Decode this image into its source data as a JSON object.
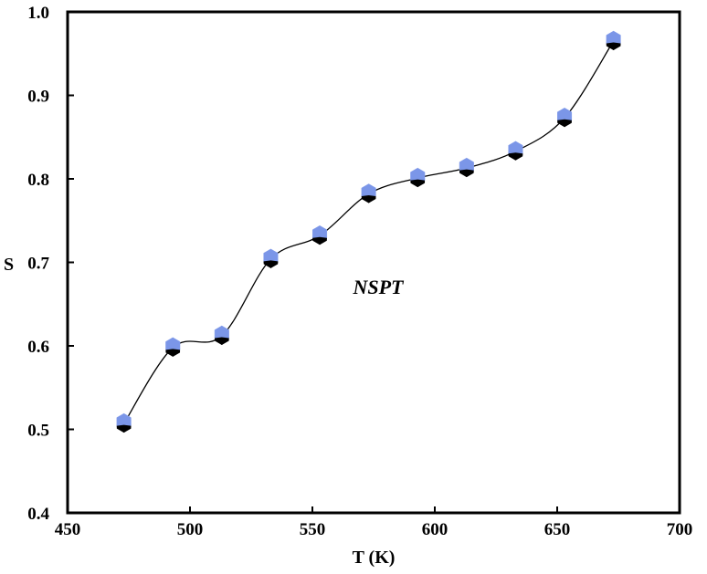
{
  "chart_data": {
    "type": "line",
    "xlabel": "T (K)",
    "ylabel": "S",
    "annotation": "NSPT",
    "xlim": [
      450,
      700
    ],
    "ylim": [
      0.4,
      1.0
    ],
    "xticks": [
      450,
      500,
      550,
      600,
      650,
      700
    ],
    "yticks": [
      0.4,
      0.5,
      0.6,
      0.7,
      0.8,
      0.9,
      1.0
    ],
    "ytick_labels": [
      "0.4",
      "0.5",
      "0.6",
      "0.7",
      "0.8",
      "0.9",
      "1.0"
    ],
    "grid": false,
    "smooth": true,
    "series": [
      {
        "x": [
          473,
          493,
          513,
          533,
          553,
          573,
          593,
          613,
          633,
          653,
          673
        ],
        "y": [
          0.507,
          0.598,
          0.612,
          0.704,
          0.732,
          0.782,
          0.801,
          0.813,
          0.833,
          0.873,
          0.965
        ],
        "color": "#000000",
        "marker_top_color": "#7b96e8",
        "marker_bottom_color": "#000000"
      }
    ]
  }
}
